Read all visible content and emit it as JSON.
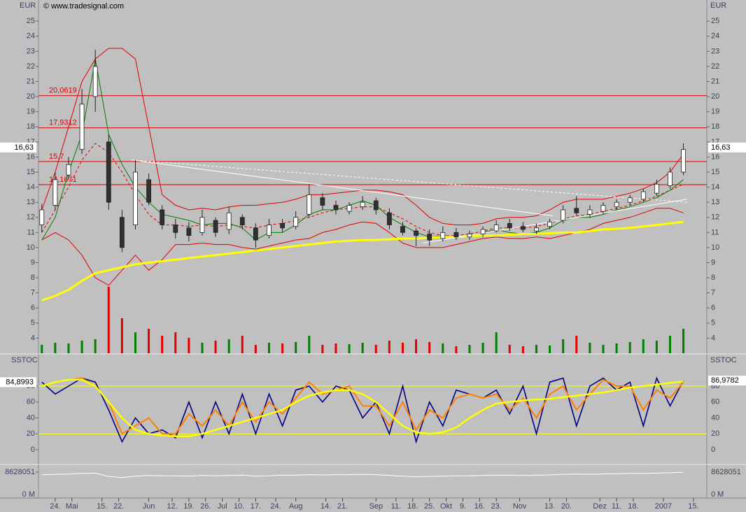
{
  "chart_data": [
    {
      "type": "candlestick",
      "unit_left": "EUR",
      "unit_right": "EUR",
      "credit": "© www.tradesignal.com",
      "x": [
        1,
        5,
        9,
        13,
        17,
        21,
        25,
        29,
        33,
        37,
        41,
        45,
        49,
        53,
        57,
        61,
        65,
        69,
        73,
        77,
        81,
        85,
        89,
        93,
        97,
        101,
        105,
        109,
        113,
        117,
        121,
        125,
        129,
        133,
        137,
        141,
        145,
        149,
        153,
        157,
        161,
        165,
        169,
        173,
        177,
        181,
        185,
        189,
        193
      ],
      "xlim": [
        0,
        200
      ],
      "ylim": [
        3,
        26.4
      ],
      "yticks": [
        4,
        5,
        6,
        7,
        8,
        9,
        10,
        11,
        12,
        13,
        14,
        15,
        16,
        17,
        18,
        19,
        20,
        21,
        22,
        23,
        24,
        25
      ],
      "open": [
        11.5,
        12.8,
        14.8,
        16.5,
        20.0,
        17.0,
        12.0,
        11.5,
        14.5,
        12.5,
        11.5,
        11.3,
        11.0,
        11.8,
        11.2,
        12.0,
        11.3,
        10.8,
        11.6,
        11.4,
        12.2,
        13.3,
        12.8,
        12.4,
        12.7,
        13.1,
        12.3,
        11.4,
        11.1,
        10.9,
        10.6,
        11.0,
        10.7,
        10.9,
        11.1,
        11.6,
        11.4,
        11.1,
        11.4,
        11.8,
        12.6,
        12.2,
        12.4,
        12.7,
        13.0,
        13.2,
        13.6,
        14.1,
        15.0
      ],
      "high": [
        12.9,
        15.0,
        16.0,
        20.5,
        23.1,
        17.5,
        12.5,
        15.8,
        14.9,
        12.8,
        11.9,
        11.7,
        12.5,
        12.0,
        12.7,
        12.2,
        11.6,
        11.9,
        11.9,
        12.4,
        14.2,
        13.6,
        13.1,
        13.0,
        13.4,
        13.3,
        12.6,
        11.7,
        11.3,
        11.2,
        11.4,
        11.3,
        11.1,
        11.4,
        11.8,
        11.9,
        11.7,
        11.6,
        11.9,
        12.8,
        13.4,
        12.8,
        13.0,
        13.2,
        13.5,
        13.9,
        14.5,
        15.3,
        16.9
      ],
      "low": [
        11.0,
        12.5,
        14.5,
        16.2,
        19.0,
        12.5,
        9.7,
        11.2,
        12.8,
        11.2,
        10.6,
        10.4,
        10.8,
        10.7,
        10.9,
        11.2,
        10.0,
        10.6,
        11.0,
        11.2,
        12.0,
        12.5,
        12.2,
        12.2,
        12.5,
        12.2,
        11.2,
        10.8,
        10.1,
        10.1,
        10.4,
        10.5,
        10.5,
        10.7,
        11.0,
        11.1,
        11.0,
        10.9,
        11.2,
        11.6,
        12.1,
        12.0,
        12.2,
        12.5,
        12.8,
        13.0,
        13.4,
        13.9,
        14.8
      ],
      "close": [
        12.5,
        14.5,
        15.5,
        19.5,
        22.0,
        13.0,
        10.0,
        15.0,
        13.0,
        11.5,
        11.0,
        10.8,
        12.0,
        11.0,
        12.3,
        11.5,
        10.5,
        11.5,
        11.3,
        12.0,
        13.5,
        12.8,
        12.5,
        12.8,
        13.0,
        12.5,
        11.5,
        11.0,
        10.8,
        10.5,
        11.0,
        10.7,
        10.9,
        11.2,
        11.5,
        11.3,
        11.2,
        11.3,
        11.7,
        12.5,
        12.3,
        12.5,
        12.8,
        13.0,
        13.3,
        13.7,
        14.2,
        15.0,
        16.5
      ],
      "up_color": "#ffffff",
      "down_color": "#303030",
      "lines": [
        {
          "color": "#e00000",
          "width": 1,
          "style": "solid",
          "values": [
            12.5,
            15,
            18,
            21,
            22.5,
            23.2,
            23.2,
            22.5,
            18,
            13.5,
            12.8,
            12.5,
            12.6,
            12.5,
            12.7,
            12.8,
            12.8,
            12.9,
            13,
            13.2,
            13.5,
            13.5,
            13.6,
            13.7,
            13.8,
            13.8,
            13.7,
            13.5,
            12.8,
            12,
            11.6,
            11.5,
            11.5,
            11.6,
            11.9,
            12,
            12,
            12.1,
            12.5,
            13,
            13.2,
            13.2,
            13.2,
            13.4,
            13.6,
            13.9,
            14.3,
            15.0,
            16.2
          ]
        },
        {
          "color": "#e00000",
          "width": 1,
          "style": "solid",
          "values": [
            10.5,
            11,
            10.5,
            9.5,
            8,
            7.5,
            8.5,
            9.5,
            8.5,
            9.2,
            10.2,
            10.2,
            10.3,
            10.2,
            10.2,
            10,
            9.9,
            10.1,
            10.3,
            10.5,
            10.6,
            11,
            11.2,
            11.5,
            11.7,
            11.6,
            11,
            10.3,
            10,
            10,
            10,
            10.2,
            10.4,
            10.6,
            10.7,
            10.6,
            10.6,
            10.7,
            10.6,
            10.8,
            11,
            11.2,
            11.6,
            11.8,
            12,
            12.3,
            12.6,
            12.6,
            12.3
          ]
        },
        {
          "color": "#e00000",
          "width": 1,
          "style": "dashed",
          "values": [
            11,
            12.5,
            14,
            15.8,
            16.9,
            16.3,
            15,
            13.5,
            12.2,
            11.5,
            11.5,
            11.4,
            11.5,
            11.4,
            11.5,
            11.4,
            11.3,
            11.5,
            11.6,
            11.8,
            12,
            12.3,
            12.5,
            12.6,
            12.7,
            12.7,
            12.3,
            11.9,
            11.4,
            11,
            10.8,
            10.8,
            10.9,
            11.1,
            11.3,
            11.3,
            11.3,
            11.4,
            11.6,
            11.9,
            12.1,
            12.2,
            12.4,
            12.6,
            12.8,
            13.1,
            13.4,
            13.8,
            14.2
          ]
        },
        {
          "color": "#008000",
          "width": 1,
          "style": "solid",
          "values": [
            10.5,
            12,
            15,
            17.5,
            22.5,
            17.5,
            15.5,
            14,
            13,
            12.2,
            12,
            11.8,
            11.5,
            11.6,
            11.6,
            11.3,
            10.5,
            11,
            11,
            11.5,
            12.2,
            12.5,
            12.5,
            12.8,
            13.1,
            12.8,
            12,
            11.5,
            11,
            10.7,
            10.8,
            10.7,
            10.8,
            11,
            11.2,
            11,
            10.9,
            11,
            11.3,
            11.8,
            12,
            12,
            12.2,
            12.5,
            12.7,
            13,
            13.3,
            13.8,
            14.5
          ]
        },
        {
          "color": "#ffff00",
          "width": 3,
          "style": "solid",
          "values": [
            6.5,
            6.8,
            7.2,
            7.8,
            8.3,
            8.5,
            8.7,
            8.9,
            9,
            9.1,
            9.2,
            9.3,
            9.4,
            9.5,
            9.6,
            9.7,
            9.8,
            9.9,
            10,
            10.1,
            10.2,
            10.3,
            10.4,
            10.45,
            10.5,
            10.5,
            10.55,
            10.6,
            10.6,
            10.65,
            10.7,
            10.7,
            10.75,
            10.8,
            10.8,
            10.85,
            10.9,
            10.9,
            10.95,
            11,
            11,
            11.1,
            11.2,
            11.25,
            11.3,
            11.4,
            11.5,
            11.6,
            11.7
          ]
        }
      ],
      "trend_lines": [
        {
          "color": "#ffffff",
          "style": "solid",
          "x": [
            28,
            154
          ],
          "values": [
            15.8,
            12.1
          ]
        },
        {
          "color": "#ffffff",
          "style": "dashed",
          "x": [
            28,
            194
          ],
          "values": [
            15.8,
            13.0
          ]
        },
        {
          "color": "#ffffff",
          "style": "solid",
          "x": [
            115,
            194
          ],
          "values": [
            10.3,
            13.2
          ]
        }
      ],
      "levels": [
        {
          "value": 20.0619,
          "label": "20,0619"
        },
        {
          "value": 17.9312,
          "label": "17,9312"
        },
        {
          "value": 15.7,
          "label": "15,7"
        },
        {
          "value": 14.1671,
          "label": "14,1671"
        }
      ],
      "level_color": "#e00000",
      "last_price": {
        "value": 16.63,
        "label": "16,63"
      },
      "volume": [
        12,
        15,
        14,
        18,
        20,
        95,
        50,
        30,
        35,
        25,
        30,
        22,
        15,
        18,
        20,
        25,
        12,
        15,
        14,
        16,
        25,
        12,
        14,
        13,
        15,
        12,
        18,
        15,
        20,
        16,
        14,
        10,
        12,
        15,
        30,
        12,
        10,
        12,
        11,
        20,
        25,
        15,
        12,
        14,
        16,
        20,
        18,
        25,
        35
      ],
      "vlim": [
        0,
        100
      ],
      "vol_up_color": "#008000",
      "vol_down_color": "#e00000"
    },
    {
      "type": "line",
      "title_left": "SSTOC",
      "title_right": "SSTOC",
      "ylim": [
        -17.6,
        118.7
      ],
      "yticks": [
        0,
        20,
        40,
        60,
        80
      ],
      "levels": [
        20,
        80
      ],
      "level_color": "#ffff00",
      "lines": [
        {
          "color": "#000080",
          "width": 1.6,
          "values": [
            85,
            70,
            80,
            90,
            85,
            50,
            10,
            40,
            20,
            25,
            15,
            60,
            15,
            60,
            20,
            70,
            20,
            70,
            30,
            75,
            80,
            60,
            80,
            75,
            40,
            60,
            20,
            80,
            10,
            60,
            30,
            75,
            70,
            65,
            75,
            45,
            80,
            20,
            85,
            90,
            30,
            80,
            90,
            75,
            85,
            30,
            90,
            55,
            87
          ]
        },
        {
          "color": "#ff8000",
          "width": 2,
          "values": [
            80,
            85,
            88,
            90,
            80,
            60,
            20,
            30,
            40,
            20,
            20,
            45,
            30,
            50,
            30,
            60,
            35,
            60,
            45,
            65,
            85,
            70,
            75,
            80,
            55,
            55,
            30,
            60,
            25,
            50,
            40,
            65,
            70,
            65,
            70,
            50,
            65,
            40,
            70,
            80,
            50,
            70,
            88,
            80,
            80,
            50,
            75,
            65,
            85
          ]
        },
        {
          "color": "#ffff00",
          "width": 2.5,
          "values": [
            80,
            85,
            88,
            88,
            80,
            60,
            40,
            25,
            20,
            18,
            17,
            17,
            20,
            25,
            30,
            35,
            40,
            45,
            50,
            60,
            68,
            72,
            75,
            75,
            70,
            60,
            45,
            30,
            22,
            20,
            22,
            28,
            40,
            50,
            58,
            60,
            62,
            63,
            64,
            66,
            68,
            70,
            72,
            75,
            78,
            80,
            82,
            84,
            86
          ]
        }
      ],
      "last_left": {
        "value": 84.8993,
        "label": "84,8993"
      },
      "last_right": {
        "value": 86.9782,
        "label": "86,9782"
      }
    },
    {
      "type": "line",
      "ylim": [
        0,
        10960000
      ],
      "yticks": [
        {
          "value": 0,
          "label": "0 M"
        },
        8628051
      ],
      "color": "#ffffff",
      "values": [
        7800000,
        7900000,
        8000000,
        8200000,
        8300000,
        7200000,
        6800000,
        7300000,
        7500000,
        7400000,
        7400000,
        7300000,
        7500000,
        7400000,
        7500000,
        7600000,
        7300000,
        7400000,
        7600000,
        7600000,
        7800000,
        7700000,
        7800000,
        7800000,
        7900000,
        7800000,
        7500000,
        7300000,
        7100000,
        7200000,
        7300000,
        7400000,
        7400000,
        7500000,
        7600000,
        7600000,
        7500000,
        7600000,
        7700000,
        7900000,
        8000000,
        7900000,
        8000000,
        8100000,
        8200000,
        8200000,
        8300000,
        8400000,
        8600000
      ],
      "xticks": [
        {
          "value": 5,
          "label": "24."
        },
        {
          "value": 10,
          "label": "Mai"
        },
        {
          "value": 19,
          "label": "15."
        },
        {
          "value": 24,
          "label": "22."
        },
        {
          "value": 33,
          "label": "Jun"
        },
        {
          "value": 40,
          "label": "12."
        },
        {
          "value": 45,
          "label": "19."
        },
        {
          "value": 50,
          "label": "26."
        },
        {
          "value": 55,
          "label": "Jul"
        },
        {
          "value": 60,
          "label": "10."
        },
        {
          "value": 65,
          "label": "17."
        },
        {
          "value": 71,
          "label": "24."
        },
        {
          "value": 77,
          "label": "Aug"
        },
        {
          "value": 86,
          "label": "14."
        },
        {
          "value": 91,
          "label": "21."
        },
        {
          "value": 101,
          "label": "Sep"
        },
        {
          "value": 107,
          "label": "11."
        },
        {
          "value": 112,
          "label": "18."
        },
        {
          "value": 117,
          "label": "25."
        },
        {
          "value": 122,
          "label": "Okt"
        },
        {
          "value": 127,
          "label": "9."
        },
        {
          "value": 132,
          "label": "16."
        },
        {
          "value": 137,
          "label": "23."
        },
        {
          "value": 144,
          "label": "Nov"
        },
        {
          "value": 153,
          "label": "13."
        },
        {
          "value": 158,
          "label": "20."
        },
        {
          "value": 168,
          "label": "Dez"
        },
        {
          "value": 173,
          "label": "11."
        },
        {
          "value": 178,
          "label": "18."
        },
        {
          "value": 187,
          "label": "2007"
        },
        {
          "value": 196,
          "label": "15."
        }
      ]
    }
  ]
}
